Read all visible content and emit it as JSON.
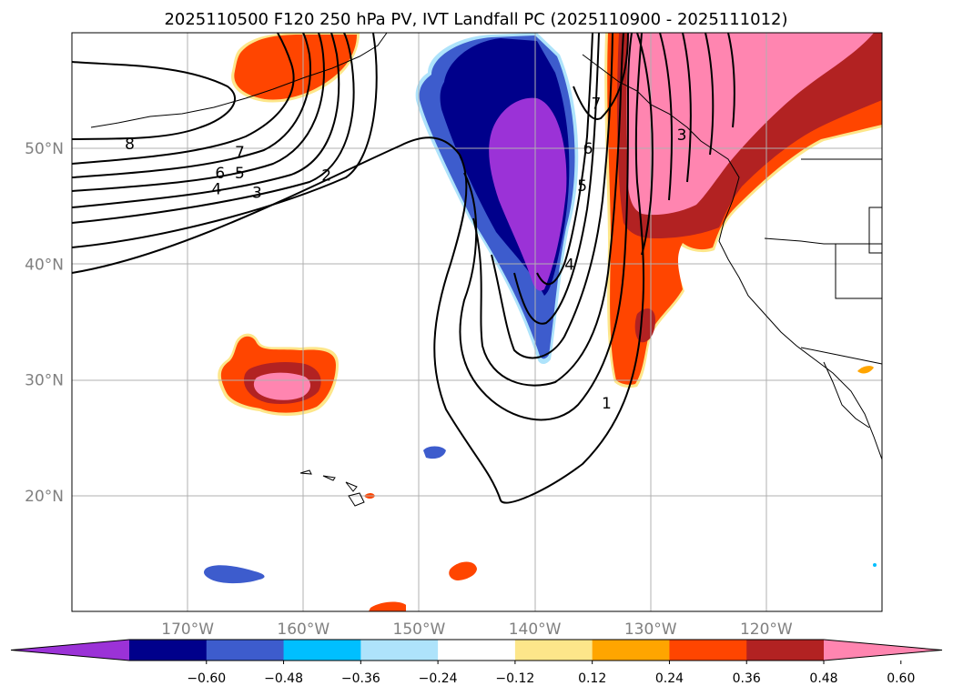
{
  "chart_data": {
    "type": "contour-map",
    "title": "2025110500 F120 250 hPa PV, IVT Landfall PC (2025110900 - 2025111012)",
    "lon_range": [
      -180,
      -110
    ],
    "lat_range": [
      10,
      60
    ],
    "lat_ticks": [
      {
        "value": 20,
        "label": "20°N"
      },
      {
        "value": 30,
        "label": "30°N"
      },
      {
        "value": 40,
        "label": "40°N"
      },
      {
        "value": 50,
        "label": "50°N"
      }
    ],
    "lon_ticks": [
      {
        "value": -170,
        "label": "170°W"
      },
      {
        "value": -160,
        "label": "160°W"
      },
      {
        "value": -150,
        "label": "150°W"
      },
      {
        "value": -140,
        "label": "140°W"
      },
      {
        "value": -130,
        "label": "130°W"
      },
      {
        "value": -120,
        "label": "120°W"
      }
    ],
    "colorbar": {
      "levels": [
        -0.6,
        -0.48,
        -0.36,
        -0.24,
        -0.12,
        0.12,
        0.24,
        0.36,
        0.48,
        0.6
      ],
      "tick_labels": [
        "−0.60",
        "−0.48",
        "−0.36",
        "−0.24",
        "−0.12",
        "0.12",
        "0.24",
        "0.36",
        "0.48",
        "0.60"
      ],
      "colors": [
        "#9b32d7",
        "#00008b",
        "#3d5ccd",
        "#00bfff",
        "#aee3fb",
        "#ffffff",
        "#fde68a",
        "#ffa500",
        "#ff4500",
        "#b22222",
        "#ff85b0"
      ],
      "extend": "both"
    },
    "pv_contour_labels": [
      {
        "text": "8",
        "lon": -175,
        "lat": 50.4
      },
      {
        "text": "7",
        "lon": -165.5,
        "lat": 49.7
      },
      {
        "text": "6",
        "lon": -167.2,
        "lat": 47.9
      },
      {
        "text": "5",
        "lon": -165.5,
        "lat": 47.9
      },
      {
        "text": "4",
        "lon": -167.5,
        "lat": 46.5
      },
      {
        "text": "3",
        "lon": -164,
        "lat": 46.2
      },
      {
        "text": "2",
        "lon": -158,
        "lat": 47.7
      },
      {
        "text": "7",
        "lon": -134.7,
        "lat": 53.9
      },
      {
        "text": "6",
        "lon": -135.4,
        "lat": 50.0
      },
      {
        "text": "5",
        "lon": -135.9,
        "lat": 46.8
      },
      {
        "text": "4",
        "lon": -137,
        "lat": 40.0
      },
      {
        "text": "3",
        "lon": -127.3,
        "lat": 51.2
      },
      {
        "text": "1",
        "lon": -133.8,
        "lat": 28.0
      }
    ]
  }
}
